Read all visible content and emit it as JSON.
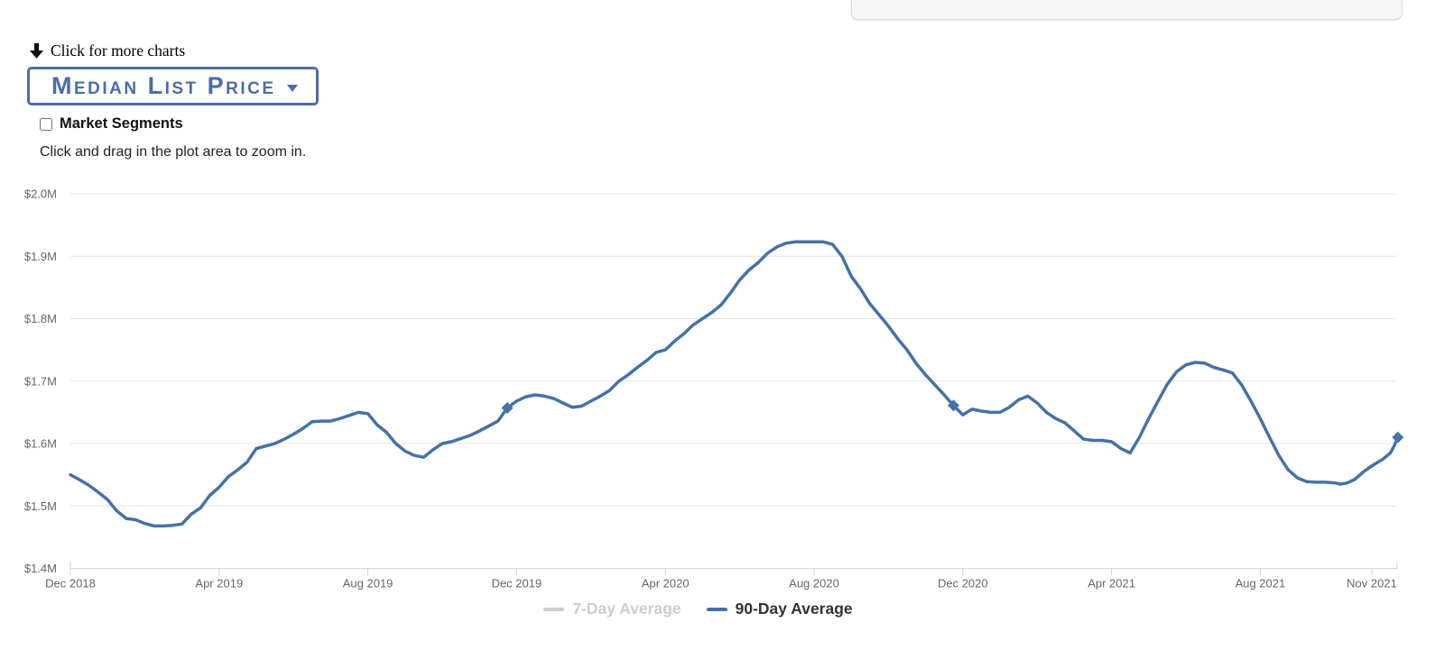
{
  "header": {
    "more_charts_label": "Click for more charts",
    "metric_selector": {
      "label": "Median List Price"
    },
    "market_segments_label": "Market Segments",
    "market_segments_checked": false,
    "hint": "Click and drag in the plot area to zoom in."
  },
  "colors": {
    "accent_blue": "#4a6da7",
    "series_blue": "#4572a7",
    "legend_disabled": "#cccccc",
    "grid": "#e6e6e6",
    "axis": "#ccd6eb",
    "axis_label": "#666666"
  },
  "chart_data": {
    "type": "line",
    "title": "",
    "xlabel": "",
    "ylabel": "",
    "x_unit": "months since Dec 2018",
    "ylim": [
      1.4,
      2.0
    ],
    "grid": "horizontal",
    "legend_position": "bottom-center",
    "y_ticks": [
      {
        "v": 1.4,
        "label": "$1.4M"
      },
      {
        "v": 1.5,
        "label": "$1.5M"
      },
      {
        "v": 1.6,
        "label": "$1.6M"
      },
      {
        "v": 1.7,
        "label": "$1.7M"
      },
      {
        "v": 1.8,
        "label": "$1.8M"
      },
      {
        "v": 1.9,
        "label": "$1.9M"
      },
      {
        "v": 2.0,
        "label": "$2.0M"
      }
    ],
    "x_ticks": [
      {
        "m": 0,
        "label": "Dec 2018"
      },
      {
        "m": 4,
        "label": "Apr 2019"
      },
      {
        "m": 8,
        "label": "Aug 2019"
      },
      {
        "m": 12,
        "label": "Dec 2019"
      },
      {
        "m": 16,
        "label": "Apr 2020"
      },
      {
        "m": 20,
        "label": "Aug 2020"
      },
      {
        "m": 24,
        "label": "Dec 2020"
      },
      {
        "m": 28,
        "label": "Apr 2021"
      },
      {
        "m": 32,
        "label": "Aug 2021"
      },
      {
        "m": 35,
        "label": "Nov 2021"
      }
    ],
    "series": [
      {
        "name": "7-Day Average",
        "color": "#cccccc",
        "visible": false,
        "points": []
      },
      {
        "name": "90-Day Average",
        "color": "#4572a7",
        "visible": true,
        "marker": "diamond",
        "marker_indices": [
          47,
          95,
          145
        ],
        "points": [
          [
            0,
            1.55
          ],
          [
            0.25,
            1.542
          ],
          [
            0.5,
            1.533
          ],
          [
            0.75,
            1.522
          ],
          [
            1,
            1.51
          ],
          [
            1.25,
            1.492
          ],
          [
            1.5,
            1.48
          ],
          [
            1.75,
            1.478
          ],
          [
            2,
            1.472
          ],
          [
            2.25,
            1.468
          ],
          [
            2.5,
            1.468
          ],
          [
            2.75,
            1.469
          ],
          [
            3,
            1.471
          ],
          [
            3.25,
            1.487
          ],
          [
            3.5,
            1.497
          ],
          [
            3.75,
            1.517
          ],
          [
            4,
            1.53
          ],
          [
            4.25,
            1.547
          ],
          [
            4.5,
            1.558
          ],
          [
            4.75,
            1.57
          ],
          [
            5,
            1.592
          ],
          [
            5.25,
            1.596
          ],
          [
            5.5,
            1.6
          ],
          [
            5.75,
            1.607
          ],
          [
            6,
            1.615
          ],
          [
            6.25,
            1.624
          ],
          [
            6.5,
            1.635
          ],
          [
            6.75,
            1.636
          ],
          [
            7,
            1.636
          ],
          [
            7.25,
            1.64
          ],
          [
            7.5,
            1.645
          ],
          [
            7.75,
            1.65
          ],
          [
            8,
            1.648
          ],
          [
            8.25,
            1.63
          ],
          [
            8.5,
            1.618
          ],
          [
            8.75,
            1.6
          ],
          [
            9,
            1.588
          ],
          [
            9.25,
            1.581
          ],
          [
            9.5,
            1.578
          ],
          [
            9.75,
            1.59
          ],
          [
            10,
            1.6
          ],
          [
            10.25,
            1.603
          ],
          [
            10.5,
            1.608
          ],
          [
            10.75,
            1.613
          ],
          [
            11,
            1.62
          ],
          [
            11.25,
            1.628
          ],
          [
            11.5,
            1.636
          ],
          [
            11.75,
            1.657
          ],
          [
            12,
            1.668
          ],
          [
            12.25,
            1.675
          ],
          [
            12.5,
            1.678
          ],
          [
            12.75,
            1.676
          ],
          [
            13,
            1.672
          ],
          [
            13.25,
            1.665
          ],
          [
            13.5,
            1.658
          ],
          [
            13.75,
            1.66
          ],
          [
            14,
            1.668
          ],
          [
            14.25,
            1.676
          ],
          [
            14.5,
            1.685
          ],
          [
            14.75,
            1.7
          ],
          [
            15,
            1.71
          ],
          [
            15.25,
            1.722
          ],
          [
            15.5,
            1.733
          ],
          [
            15.75,
            1.746
          ],
          [
            16,
            1.75
          ],
          [
            16.25,
            1.764
          ],
          [
            16.5,
            1.776
          ],
          [
            16.75,
            1.79
          ],
          [
            17,
            1.8
          ],
          [
            17.25,
            1.81
          ],
          [
            17.5,
            1.822
          ],
          [
            17.75,
            1.841
          ],
          [
            18,
            1.862
          ],
          [
            18.25,
            1.878
          ],
          [
            18.5,
            1.89
          ],
          [
            18.75,
            1.905
          ],
          [
            19,
            1.915
          ],
          [
            19.25,
            1.921
          ],
          [
            19.5,
            1.923
          ],
          [
            19.75,
            1.923
          ],
          [
            20,
            1.923
          ],
          [
            20.25,
            1.923
          ],
          [
            20.5,
            1.919
          ],
          [
            20.75,
            1.9
          ],
          [
            21,
            1.868
          ],
          [
            21.25,
            1.848
          ],
          [
            21.5,
            1.824
          ],
          [
            21.75,
            1.806
          ],
          [
            22,
            1.788
          ],
          [
            22.25,
            1.768
          ],
          [
            22.5,
            1.75
          ],
          [
            22.75,
            1.728
          ],
          [
            23,
            1.71
          ],
          [
            23.25,
            1.694
          ],
          [
            23.5,
            1.678
          ],
          [
            23.75,
            1.661
          ],
          [
            24,
            1.646
          ],
          [
            24.25,
            1.655
          ],
          [
            24.5,
            1.652
          ],
          [
            24.75,
            1.65
          ],
          [
            25,
            1.65
          ],
          [
            25.25,
            1.658
          ],
          [
            25.5,
            1.67
          ],
          [
            25.75,
            1.676
          ],
          [
            26,
            1.665
          ],
          [
            26.25,
            1.65
          ],
          [
            26.5,
            1.64
          ],
          [
            26.75,
            1.633
          ],
          [
            27,
            1.62
          ],
          [
            27.25,
            1.607
          ],
          [
            27.5,
            1.605
          ],
          [
            27.75,
            1.605
          ],
          [
            28,
            1.603
          ],
          [
            28.25,
            1.592
          ],
          [
            28.5,
            1.585
          ],
          [
            28.75,
            1.61
          ],
          [
            29,
            1.64
          ],
          [
            29.25,
            1.668
          ],
          [
            29.5,
            1.695
          ],
          [
            29.75,
            1.715
          ],
          [
            30,
            1.726
          ],
          [
            30.25,
            1.73
          ],
          [
            30.5,
            1.729
          ],
          [
            30.75,
            1.722
          ],
          [
            31,
            1.718
          ],
          [
            31.25,
            1.713
          ],
          [
            31.5,
            1.694
          ],
          [
            31.75,
            1.668
          ],
          [
            32,
            1.64
          ],
          [
            32.25,
            1.61
          ],
          [
            32.5,
            1.581
          ],
          [
            32.75,
            1.558
          ],
          [
            33,
            1.545
          ],
          [
            33.25,
            1.539
          ],
          [
            33.5,
            1.538
          ],
          [
            33.75,
            1.538
          ],
          [
            34,
            1.537
          ],
          [
            34.15,
            1.535
          ],
          [
            34.35,
            1.537
          ],
          [
            34.55,
            1.543
          ],
          [
            34.8,
            1.556
          ],
          [
            35.05,
            1.566
          ],
          [
            35.3,
            1.575
          ],
          [
            35.5,
            1.585
          ],
          [
            35.6,
            1.596
          ],
          [
            35.7,
            1.61
          ]
        ]
      }
    ],
    "legend": {
      "items": [
        {
          "label": "7-Day Average",
          "color": "#cccccc",
          "text_color": "#cccccc",
          "disabled": true
        },
        {
          "label": "90-Day Average",
          "color": "#4572a7",
          "text_color": "#333333",
          "disabled": false
        }
      ]
    }
  }
}
